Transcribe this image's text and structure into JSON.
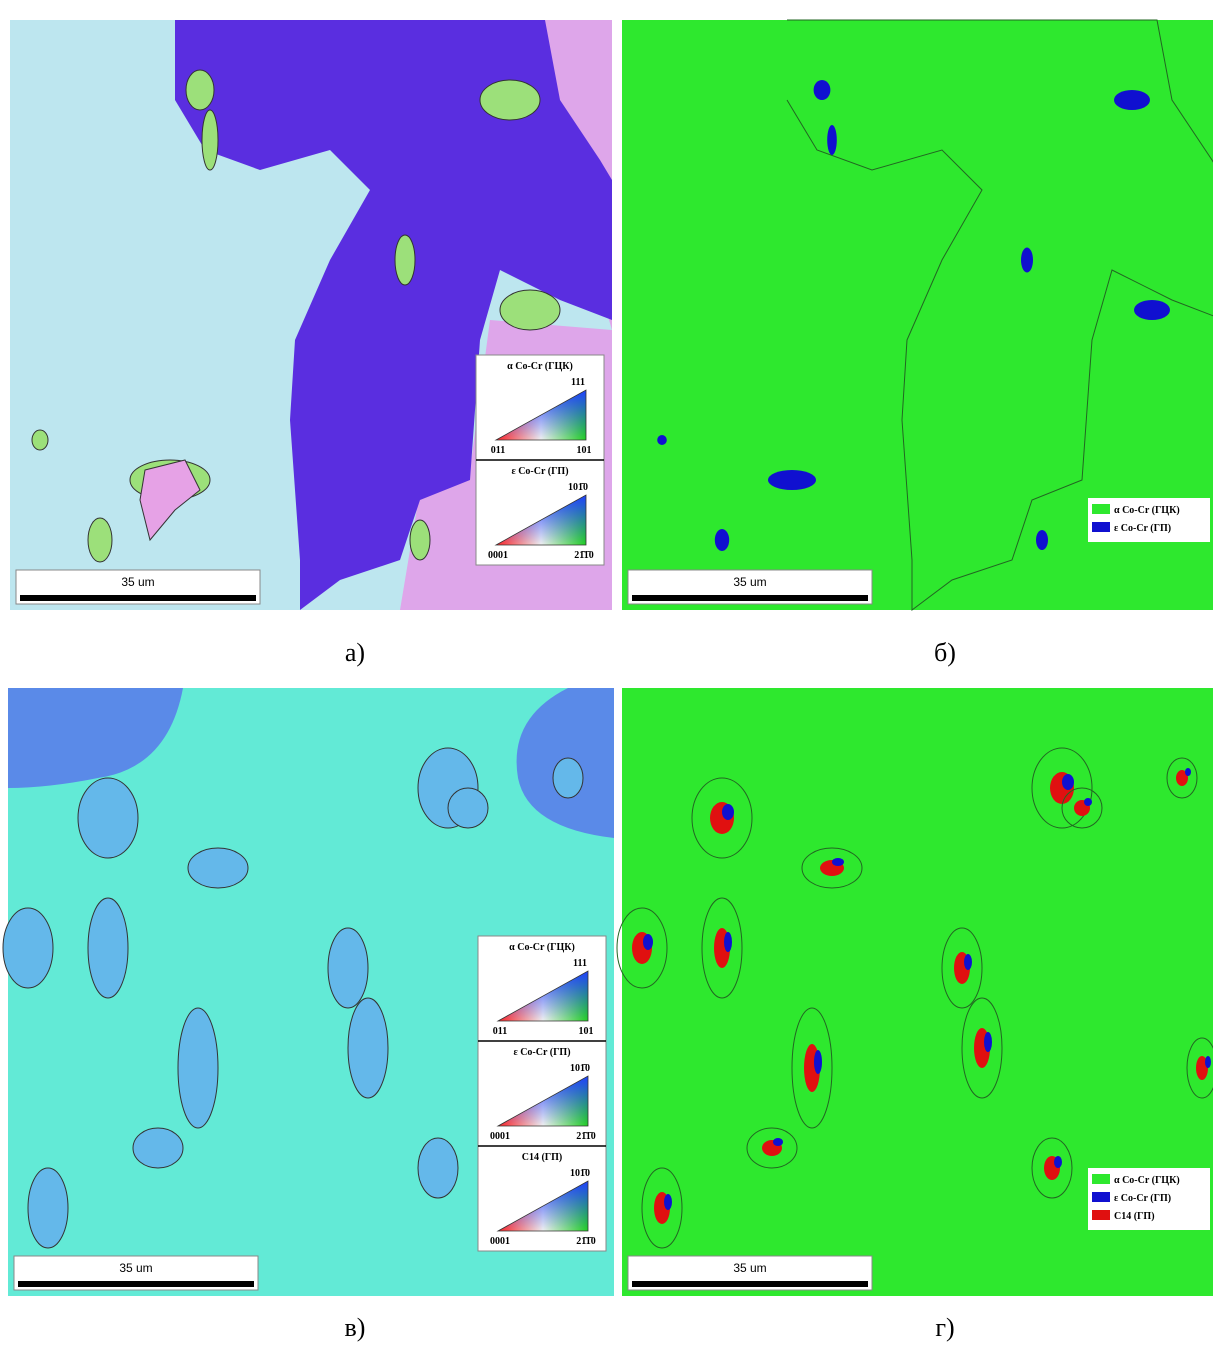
{
  "panels": [
    {
      "label": "а)",
      "scale_bar": "35 um",
      "ipf_keys": [
        {
          "title": "α Co-Cr (ГЦК)",
          "top": "111",
          "left": "011",
          "right": "101"
        },
        {
          "title": "ε Co-Cr (ГП)",
          "top": "101̄0",
          "left": "0001",
          "right": "21̄1̄0"
        }
      ]
    },
    {
      "label": "б)",
      "scale_bar": "35 um",
      "phases": [
        {
          "name": "α Co-Cr (ГЦК)",
          "color": "#2ee82e"
        },
        {
          "name": "ε Co-Cr (ГП)",
          "color": "#1010d0"
        }
      ]
    },
    {
      "label": "в)",
      "scale_bar": "35 um",
      "ipf_keys": [
        {
          "title": "α Co-Cr (ГЦК)",
          "top": "111",
          "left": "011",
          "right": "101"
        },
        {
          "title": "ε Co-Cr (ГП)",
          "top": "101̄0",
          "left": "0001",
          "right": "21̄1̄0"
        },
        {
          "title": "C14 (ГП)",
          "top": "101̄0",
          "left": "0001",
          "right": "21̄1̄0"
        }
      ]
    },
    {
      "label": "г)",
      "scale_bar": "35 um",
      "phases": [
        {
          "name": "α Co-Cr (ГЦК)",
          "color": "#2ee82e"
        },
        {
          "name": "ε Co-Cr (ГП)",
          "color": "#1010d0"
        },
        {
          "name": "C14 (ГП)",
          "color": "#e01010"
        }
      ]
    }
  ]
}
